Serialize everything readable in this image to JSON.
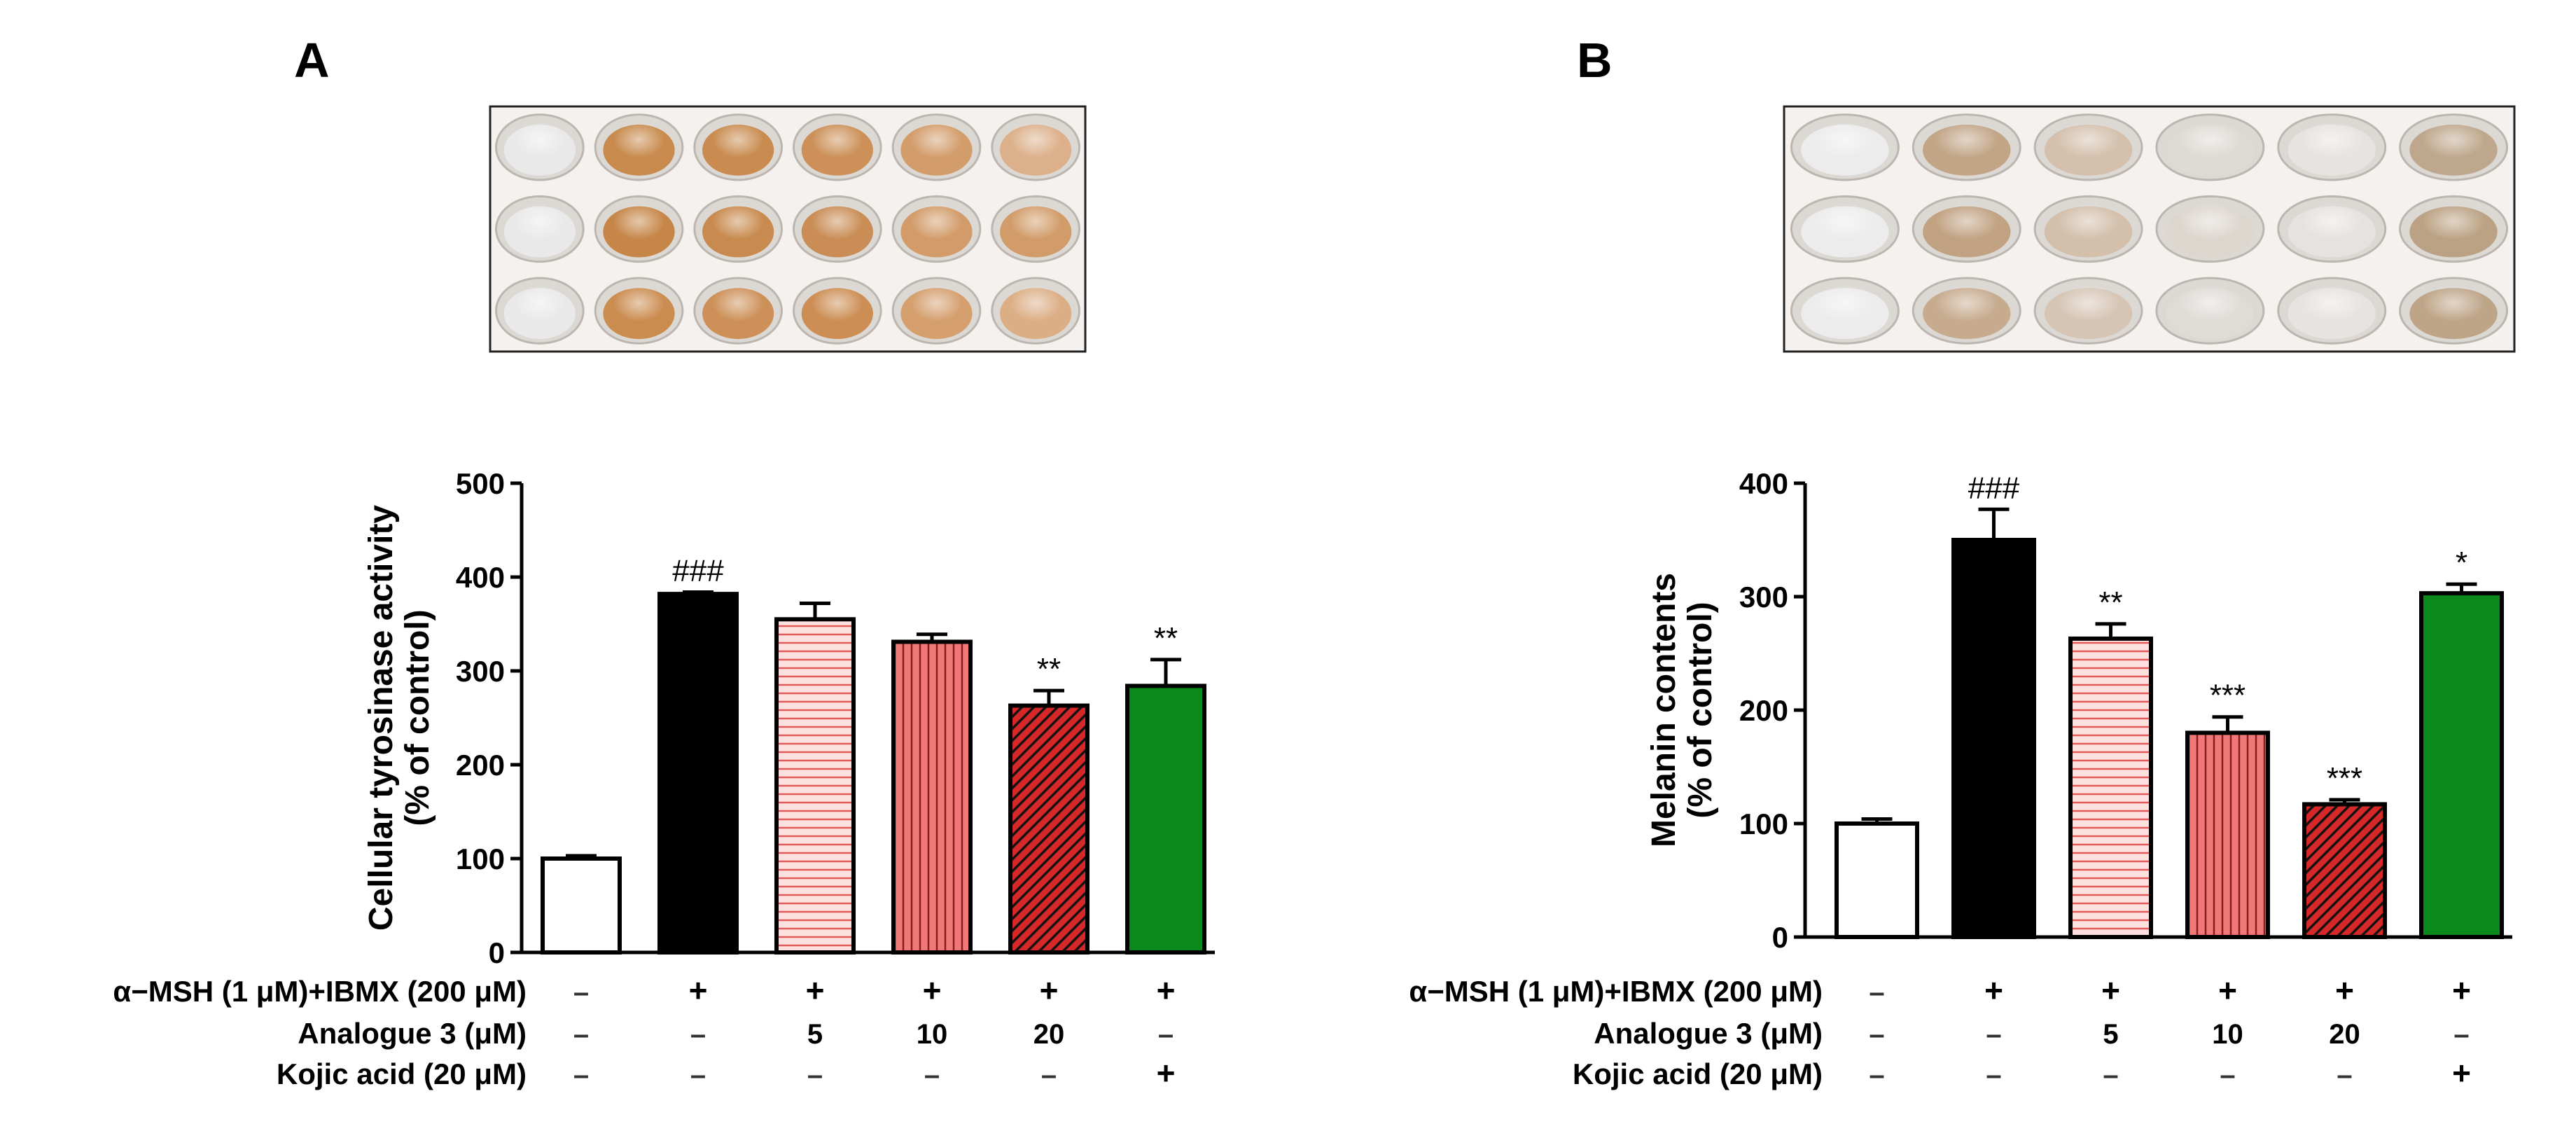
{
  "panels": [
    {
      "letter": "A",
      "photo_alt": "plate-photo",
      "plate_tints": [
        [
          "#e9e9e9",
          "#c88a4d",
          "#c98b4f",
          "#cc9058",
          "#d39d6b",
          "#dcb08a"
        ],
        [
          "#e9e9e9",
          "#c68648",
          "#c88a4e",
          "#c98d55",
          "#d29b69",
          "#d29c6a"
        ],
        [
          "#e9e9e9",
          "#cb8c50",
          "#cd9058",
          "#cc8e54",
          "#d59f6e",
          "#dcae86"
        ]
      ],
      "chart_data": {
        "type": "bar",
        "ylabel_line1": "Cellular tyrosinase activity",
        "ylabel_line2": "(% of control)",
        "ylim": [
          0,
          500
        ],
        "yticks": [
          0,
          100,
          200,
          300,
          400,
          500
        ],
        "values": [
          100,
          382,
          355,
          331,
          263,
          284
        ],
        "errors": [
          3,
          2,
          17,
          8,
          16,
          28
        ],
        "significance": [
          "",
          "###",
          "",
          "",
          "**",
          "**"
        ],
        "bar_styles": [
          "white",
          "black",
          "hlines-pink",
          "vlines-salmon",
          "hatch-red",
          "green"
        ],
        "treatment_rows": [
          {
            "label": "α−MSH (1 μM)+IBMX (200 μM)",
            "cells": [
              "–",
              "+",
              "+",
              "+",
              "+",
              "+"
            ]
          },
          {
            "label": "Analogue 3 (μM)",
            "cells": [
              "–",
              "–",
              "5",
              "10",
              "20",
              "–"
            ]
          },
          {
            "label": "Kojic acid (20 μM)",
            "cells": [
              "–",
              "–",
              "–",
              "–",
              "–",
              "+"
            ]
          }
        ]
      }
    },
    {
      "letter": "B",
      "photo_alt": "pellet-photo",
      "plate_tints": [
        [
          "#ececec",
          "#c2a587",
          "#d4c0ac",
          "#dedad4",
          "#e6e4e1",
          "#bfa78d"
        ],
        [
          "#ececec",
          "#c1a283",
          "#d3bfaa",
          "#ddd6cf",
          "#e5e3e0",
          "#bca284"
        ],
        [
          "#ececec",
          "#c7ab8f",
          "#d6c5b4",
          "#dfdcd7",
          "#e6e4e1",
          "#bea588"
        ]
      ],
      "chart_data": {
        "type": "bar",
        "ylabel_line1": "Melanin contents",
        "ylabel_line2": "(% of control)",
        "ylim": [
          0,
          400
        ],
        "yticks": [
          0,
          100,
          200,
          300,
          400
        ],
        "values": [
          100,
          350,
          263,
          180,
          117,
          303
        ],
        "errors": [
          4,
          27,
          13,
          14,
          4,
          8
        ],
        "significance": [
          "",
          "###",
          "**",
          "***",
          "***",
          "*"
        ],
        "bar_styles": [
          "white",
          "black",
          "hlines-pink",
          "vlines-salmon",
          "hatch-red",
          "green"
        ],
        "treatment_rows": [
          {
            "label": "α−MSH (1 μM)+IBMX (200 μM)",
            "cells": [
              "–",
              "+",
              "+",
              "+",
              "+",
              "+"
            ]
          },
          {
            "label": "Analogue 3 (μM)",
            "cells": [
              "–",
              "–",
              "5",
              "10",
              "20",
              "–"
            ]
          },
          {
            "label": "Kojic acid (20 μM)",
            "cells": [
              "–",
              "–",
              "–",
              "–",
              "–",
              "+"
            ]
          }
        ]
      }
    }
  ],
  "colors": {
    "black": "#000000",
    "pink_fill": "#fde0e0",
    "pink_line": "#e05a5a",
    "salmon_fill": "#f07878",
    "salmon_line": "#8a1e1e",
    "red_fill": "#d62828",
    "green_fill": "#0a8a1a",
    "frame": "#222222"
  }
}
